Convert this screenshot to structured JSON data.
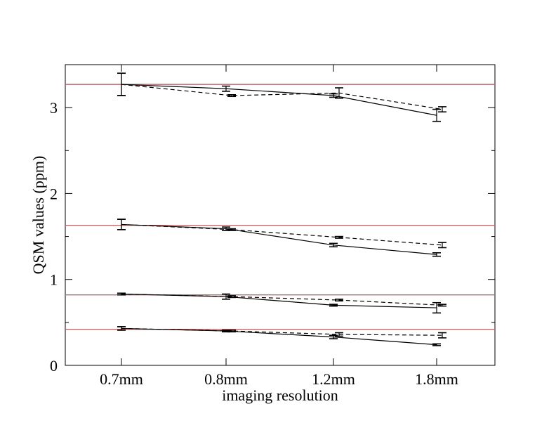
{
  "chart_data": {
    "type": "line",
    "title": "",
    "xlabel": "imaging resolution",
    "ylabel": "QSM values (ppm)",
    "categories": [
      "0.7mm",
      "0.8mm",
      "1.2mm",
      "1.8mm"
    ],
    "ylim": [
      0,
      3.5
    ],
    "yticks": [
      0,
      1,
      2,
      3
    ],
    "ytick_labels": [
      "0",
      "1",
      "2",
      "3"
    ],
    "reference_lines": [
      3.27,
      1.63,
      0.82,
      0.42
    ],
    "reference_color": "#b36b6b",
    "series": [
      {
        "group": 1,
        "name": "solid",
        "style": "solid",
        "values": [
          3.27,
          3.22,
          3.14,
          2.91
        ],
        "errors": [
          0.13,
          0.03,
          0.02,
          0.07
        ]
      },
      {
        "group": 1,
        "name": "dashed",
        "style": "dashed",
        "values": [
          3.27,
          3.14,
          3.17,
          2.98
        ],
        "errors": [
          0.13,
          0.01,
          0.06,
          0.03
        ]
      },
      {
        "group": 2,
        "name": "solid",
        "style": "solid",
        "values": [
          1.64,
          1.59,
          1.4,
          1.29
        ],
        "errors": [
          0.06,
          0.02,
          0.02,
          0.02
        ]
      },
      {
        "group": 2,
        "name": "dashed",
        "style": "dashed",
        "values": [
          1.64,
          1.58,
          1.49,
          1.4
        ],
        "errors": [
          0.06,
          0.01,
          0.01,
          0.03
        ]
      },
      {
        "group": 3,
        "name": "solid",
        "style": "solid",
        "values": [
          0.83,
          0.8,
          0.7,
          0.67
        ],
        "errors": [
          0.01,
          0.03,
          0.01,
          0.06
        ]
      },
      {
        "group": 3,
        "name": "dashed",
        "style": "dashed",
        "values": [
          0.83,
          0.8,
          0.76,
          0.7
        ],
        "errors": [
          0.01,
          0.01,
          0.01,
          0.01
        ]
      },
      {
        "group": 4,
        "name": "solid",
        "style": "solid",
        "values": [
          0.43,
          0.4,
          0.33,
          0.24
        ],
        "errors": [
          0.02,
          0.01,
          0.02,
          0.01
        ]
      },
      {
        "group": 4,
        "name": "dashed",
        "style": "dashed",
        "values": [
          0.43,
          0.4,
          0.36,
          0.35
        ],
        "errors": [
          0.02,
          0.01,
          0.02,
          0.03
        ]
      }
    ]
  }
}
